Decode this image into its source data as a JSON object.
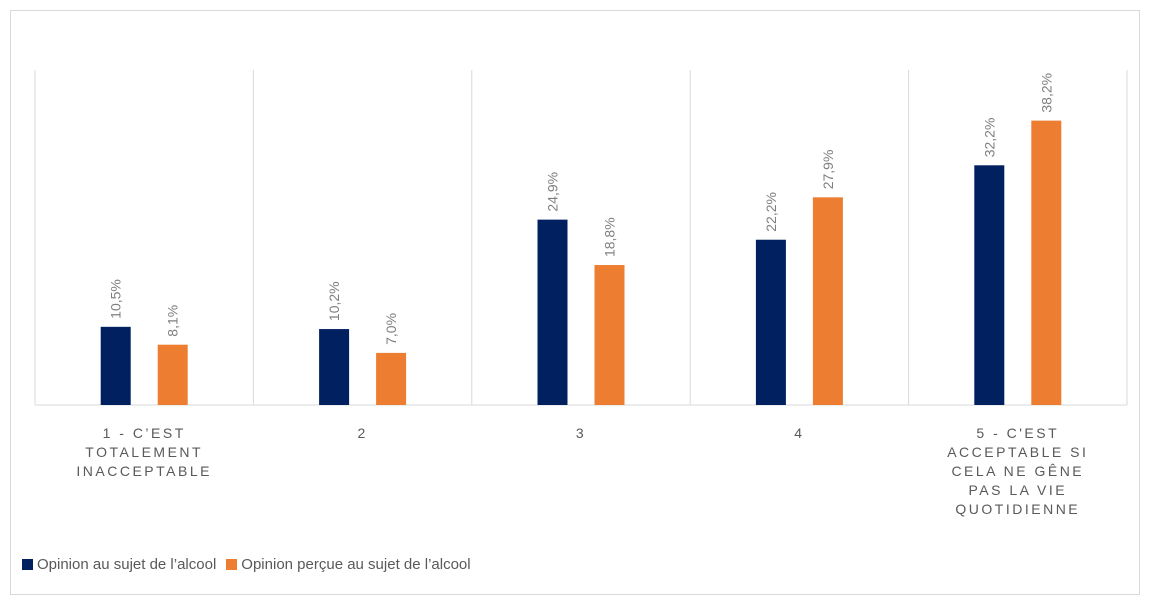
{
  "chart_data": {
    "type": "bar",
    "categories": [
      "1 - C’EST TOTALEMENT INACCEPTABLE",
      "2",
      "3",
      "4",
      "5 - C'EST ACCEPTABLE SI CELA NE GÊNE PAS LA VIE QUOTIDIENNE"
    ],
    "series": [
      {
        "name": "Opinion au sujet de l’alcool",
        "color": "#002060",
        "values": [
          10.5,
          10.2,
          24.9,
          22.2,
          32.2
        ],
        "value_labels": [
          "10,5%",
          "10,2%",
          "24,9%",
          "22,2%",
          "32,2%"
        ]
      },
      {
        "name": "Opinion perçue au sujet de l’alcool",
        "color": "#ED7D31",
        "values": [
          8.1,
          7.0,
          18.8,
          27.9,
          38.2
        ],
        "value_labels": [
          "8,1%",
          "7,0%",
          "18,8%",
          "27,9%",
          "38,2%"
        ]
      }
    ],
    "ylim": [
      0,
      45
    ],
    "legend": "bottom-left"
  }
}
